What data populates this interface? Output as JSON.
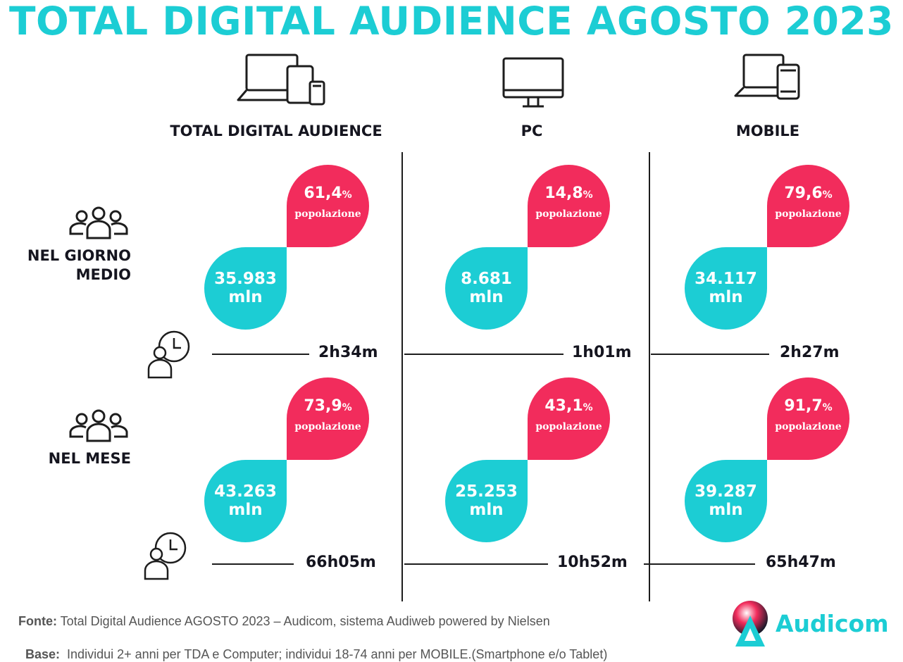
{
  "title": "TOTAL DIGITAL AUDIENCE AGOSTO 2023",
  "columns": [
    "TOTAL DIGITAL AUDIENCE",
    "PC",
    "MOBILE"
  ],
  "rows": [
    {
      "label": "NEL GIORNO MEDIO",
      "cells": [
        {
          "pct": "61,4",
          "pct_unit": "%",
          "pop": "popolazione",
          "num": "35.983",
          "unit": "mln",
          "time": "2h34m"
        },
        {
          "pct": "14,8",
          "pct_unit": "%",
          "pop": "popolazione",
          "num": "8.681",
          "unit": "mln",
          "time": "1h01m"
        },
        {
          "pct": "79,6",
          "pct_unit": "%",
          "pop": "popolazione",
          "num": "34.117",
          "unit": "mln",
          "time": "2h27m"
        }
      ]
    },
    {
      "label": "NEL MESE",
      "cells": [
        {
          "pct": "73,9",
          "pct_unit": "%",
          "pop": "popolazione",
          "num": "43.263",
          "unit": "mln",
          "time": "66h05m"
        },
        {
          "pct": "43,1",
          "pct_unit": "%",
          "pop": "popolazione",
          "num": "25.253",
          "unit": "mln",
          "time": "10h52m"
        },
        {
          "pct": "91,7",
          "pct_unit": "%",
          "pop": "popolazione",
          "num": "39.287",
          "unit": "mln",
          "time": "65h47m"
        }
      ]
    }
  ],
  "row_label_lines": [
    [
      "NEL GIORNO",
      "MEDIO"
    ],
    [
      "NEL MESE"
    ]
  ],
  "footer": {
    "fonte_label": "Fonte:",
    "fonte_text": " Total Digital Audience AGOSTO 2023 – Audicom, sistema Audiweb powered by Nielsen",
    "base_label": "Base:",
    "base_text": "  Individui 2+ anni per TDA e Computer; individui 18-74 anni per MOBILE.(Smartphone e/o Tablet)"
  },
  "logo": {
    "text": "Audicom"
  },
  "colors": {
    "accent_teal": "#1ccdd4",
    "accent_pink": "#f22c5c",
    "ink": "#15151f"
  },
  "icons": [
    "all-devices-icon",
    "pc-monitor-icon",
    "mobile-devices-icon",
    "people-group-icon",
    "person-clock-icon",
    "audicom-logo-icon"
  ]
}
